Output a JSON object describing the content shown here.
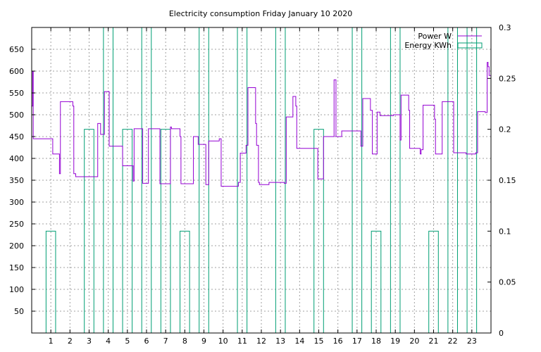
{
  "chart_data": {
    "type": "line",
    "title": "Electricity consumption Friday January 10 2020",
    "x_ticks": [
      "1",
      "2",
      "3",
      "4",
      "5",
      "6",
      "7",
      "8",
      "9",
      "10",
      "11",
      "12",
      "13",
      "14",
      "15",
      "16",
      "17",
      "18",
      "19",
      "20",
      "21",
      "22",
      "23"
    ],
    "y_ticks": [
      "50",
      "100",
      "150",
      "200",
      "250",
      "300",
      "350",
      "400",
      "450",
      "500",
      "550",
      "600",
      "650"
    ],
    "y2_ticks": [
      "0",
      "0.05",
      "0.1",
      "0.15",
      "0.2",
      "0.25",
      "0.3"
    ],
    "xlim": [
      0,
      24
    ],
    "ylim": [
      0,
      700
    ],
    "y2lim": [
      0,
      0.3
    ],
    "grid": true,
    "legend_position": "top-right",
    "colors": {
      "power": "#9400d3",
      "energy": "#009e73"
    },
    "series": [
      {
        "name": "Power W",
        "axis": "left",
        "style": "step",
        "points": [
          [
            0,
            520
          ],
          [
            0.05,
            600
          ],
          [
            0.08,
            445
          ],
          [
            1.1,
            410
          ],
          [
            1.45,
            365
          ],
          [
            1.5,
            530
          ],
          [
            2.15,
            520
          ],
          [
            2.2,
            365
          ],
          [
            2.3,
            358
          ],
          [
            3.45,
            480
          ],
          [
            3.6,
            455
          ],
          [
            3.8,
            553
          ],
          [
            4.05,
            428
          ],
          [
            4.75,
            383
          ],
          [
            5.3,
            348
          ],
          [
            5.35,
            468
          ],
          [
            5.8,
            343
          ],
          [
            6.1,
            468
          ],
          [
            6.7,
            342
          ],
          [
            7.25,
            472
          ],
          [
            7.3,
            468
          ],
          [
            7.75,
            450
          ],
          [
            7.8,
            342
          ],
          [
            8.45,
            450
          ],
          [
            8.7,
            432
          ],
          [
            9.1,
            340
          ],
          [
            9.25,
            440
          ],
          [
            9.8,
            445
          ],
          [
            9.9,
            336
          ],
          [
            10.8,
            345
          ],
          [
            10.9,
            412
          ],
          [
            11.2,
            430
          ],
          [
            11.3,
            562
          ],
          [
            11.7,
            480
          ],
          [
            11.75,
            430
          ],
          [
            11.85,
            345
          ],
          [
            11.9,
            340
          ],
          [
            12.4,
            345
          ],
          [
            13.2,
            343
          ],
          [
            13.3,
            495
          ],
          [
            13.65,
            542
          ],
          [
            13.8,
            520
          ],
          [
            13.85,
            423
          ],
          [
            14.95,
            353
          ],
          [
            15.25,
            450
          ],
          [
            15.8,
            580
          ],
          [
            15.9,
            450
          ],
          [
            16.2,
            463
          ],
          [
            17.2,
            428
          ],
          [
            17.3,
            537
          ],
          [
            17.7,
            510
          ],
          [
            17.8,
            410
          ],
          [
            18.05,
            506
          ],
          [
            18.2,
            498
          ],
          [
            18.9,
            500
          ],
          [
            19.2,
            500
          ],
          [
            19.25,
            442
          ],
          [
            19.3,
            545
          ],
          [
            19.7,
            510
          ],
          [
            19.75,
            423
          ],
          [
            20.3,
            410
          ],
          [
            20.35,
            420
          ],
          [
            20.45,
            522
          ],
          [
            21.05,
            490
          ],
          [
            21.1,
            410
          ],
          [
            21.45,
            530
          ],
          [
            21.95,
            530
          ],
          [
            22.05,
            413
          ],
          [
            22.7,
            410
          ],
          [
            23.2,
            413
          ],
          [
            23.3,
            507
          ],
          [
            23.7,
            505
          ],
          [
            23.8,
            620
          ],
          [
            23.85,
            610
          ],
          [
            23.9,
            590
          ],
          [
            24.0,
            590
          ]
        ]
      },
      {
        "name": "Energy KWh",
        "axis": "right",
        "style": "bars",
        "bars": [
          [
            1,
            0.1
          ],
          [
            2,
            0.0
          ],
          [
            3,
            0.2
          ],
          [
            4,
            0.3
          ],
          [
            5,
            0.2
          ],
          [
            6,
            0.3
          ],
          [
            7,
            0.2
          ],
          [
            8,
            0.1
          ],
          [
            9,
            0.3
          ],
          [
            10,
            0.0
          ],
          [
            11,
            0.3
          ],
          [
            12,
            0.0
          ],
          [
            13,
            0.3
          ],
          [
            14,
            0.0
          ],
          [
            15,
            0.2
          ],
          [
            16,
            0.0
          ],
          [
            17,
            0.3
          ],
          [
            18,
            0.1
          ],
          [
            19,
            0.3
          ],
          [
            20,
            0.0
          ],
          [
            21,
            0.1
          ],
          [
            22,
            0.3
          ],
          [
            23,
            0.3
          ]
        ],
        "bar_width": 0.5
      }
    ]
  }
}
